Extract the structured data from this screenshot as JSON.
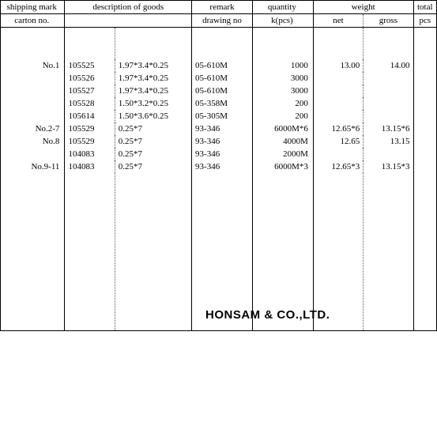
{
  "header": {
    "shipping_mark": "shipping mark",
    "carton_no": "carton no.",
    "description": "description of goods",
    "remark": "remark",
    "drawing_no": "drawing no",
    "quantity": "quantity",
    "kpcs": "k(pcs)",
    "weight": "weight",
    "net": "net",
    "gross": "gross",
    "total": "total",
    "pcs": "pcs"
  },
  "rows": [
    {
      "mark": "No.1",
      "code": "105525",
      "spec": "1.97*3.4*0.25",
      "remark": "05-610M",
      "qty": "1000",
      "net": "13.00",
      "gross": "14.00"
    },
    {
      "mark": "",
      "code": "105526",
      "spec": "1.97*3.4*0.25",
      "remark": "05-610M",
      "qty": "3000",
      "net": "",
      "gross": ""
    },
    {
      "mark": "",
      "code": "105527",
      "spec": "1.97*3.4*0.25",
      "remark": "05-610M",
      "qty": "3000",
      "net": "",
      "gross": ""
    },
    {
      "mark": "",
      "code": "105528",
      "spec": "1.50*3.2*0.25",
      "remark": "05-358M",
      "qty": "200",
      "net": "",
      "gross": ""
    },
    {
      "mark": "",
      "code": "105614",
      "spec": "1.50*3.6*0.25",
      "remark": "05-305M",
      "qty": "200",
      "net": "",
      "gross": ""
    },
    {
      "mark": "No.2-7",
      "code": "105529",
      "spec": "0.25*7",
      "remark": "93-346",
      "qty": "6000M*6",
      "net": "12.65*6",
      "gross": "13.15*6"
    },
    {
      "mark": "No.8",
      "code": "105529",
      "spec": "0.25*7",
      "remark": "93-346",
      "qty": "4000M",
      "net": "12.65",
      "gross": "13.15"
    },
    {
      "mark": "",
      "code": "104083",
      "spec": "0.25*7",
      "remark": "93-346",
      "qty": "2000M",
      "net": "",
      "gross": ""
    },
    {
      "mark": "No.9-11",
      "code": "104083",
      "spec": "0.25*7",
      "remark": "93-346",
      "qty": "6000M*3",
      "net": "12.65*3",
      "gross": "13.15*3"
    }
  ],
  "watermark": "HONSAM & CO.,LTD."
}
